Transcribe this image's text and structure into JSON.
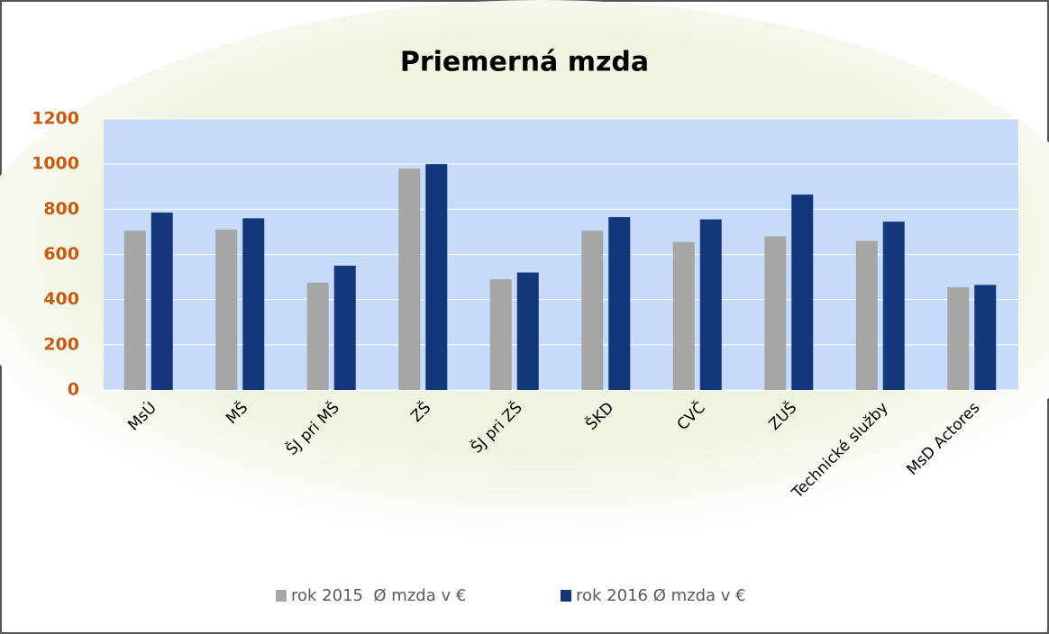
{
  "chart_data": {
    "type": "bar",
    "title": "Priemerná mzda",
    "categories": [
      "MsÚ",
      "MŠ",
      "ŠJ pri MŠ",
      "ZŠ",
      "ŠJ pri ZŠ",
      "ŠKD",
      "CVČ",
      "ZUŠ",
      "Technické služby",
      "MsD Actores"
    ],
    "series": [
      {
        "name": "rok 2015  Ø mzda v €",
        "color": "#a6a6a6",
        "values": [
          705,
          710,
          475,
          980,
          490,
          705,
          655,
          680,
          660,
          455
        ]
      },
      {
        "name": "rok 2016 Ø mzda v €",
        "color": "#14367a",
        "values": [
          785,
          760,
          550,
          1000,
          520,
          765,
          755,
          865,
          745,
          465
        ]
      }
    ],
    "ylim": [
      0,
      1200
    ],
    "yticks": [
      0,
      200,
      400,
      600,
      800,
      1000,
      1200
    ],
    "grid": true,
    "legend": "bottom"
  }
}
